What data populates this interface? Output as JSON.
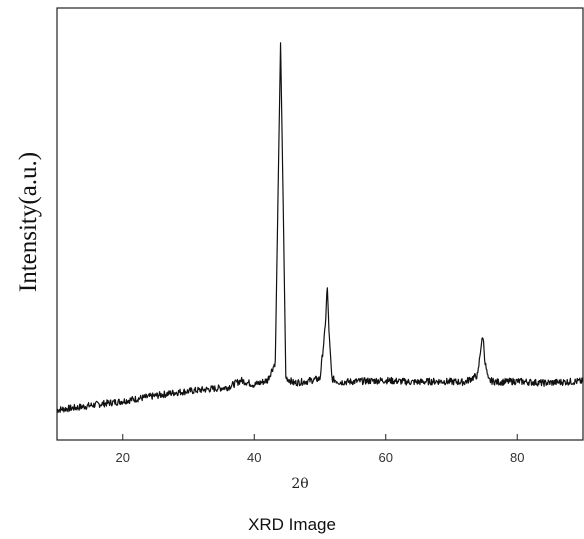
{
  "chart_data": {
    "type": "line",
    "title": "",
    "caption": "XRD Image",
    "xlabel": "2θ",
    "ylabel": "Intensity(a.u.)",
    "xlim": [
      10,
      90
    ],
    "ylim": [
      0,
      100
    ],
    "xticks": [
      20,
      40,
      60,
      80
    ],
    "yticks": [],
    "grid": false,
    "series": [
      {
        "color": "#111111",
        "x": [
          10,
          13,
          16,
          20,
          24,
          28,
          32,
          36,
          38,
          40,
          42,
          43.2,
          43.6,
          44.0,
          44.4,
          44.8,
          46,
          48,
          50,
          50.8,
          51.1,
          51.4,
          51.8,
          53,
          56,
          60,
          64,
          68,
          72,
          74,
          74.5,
          74.8,
          75.1,
          75.6,
          77,
          80,
          84,
          88,
          90
        ],
        "y": [
          7,
          7.5,
          8.2,
          9,
          10,
          11,
          11.6,
          12.2,
          13.8,
          12.8,
          13.8,
          18,
          55,
          92,
          55,
          14.5,
          13.2,
          13.6,
          14.2,
          26,
          36,
          24,
          14.2,
          13.4,
          13.6,
          13.8,
          13.4,
          13.6,
          13.4,
          15,
          22,
          24,
          18,
          13.8,
          13.4,
          13.6,
          13.2,
          13.5,
          13.6
        ]
      }
    ]
  }
}
